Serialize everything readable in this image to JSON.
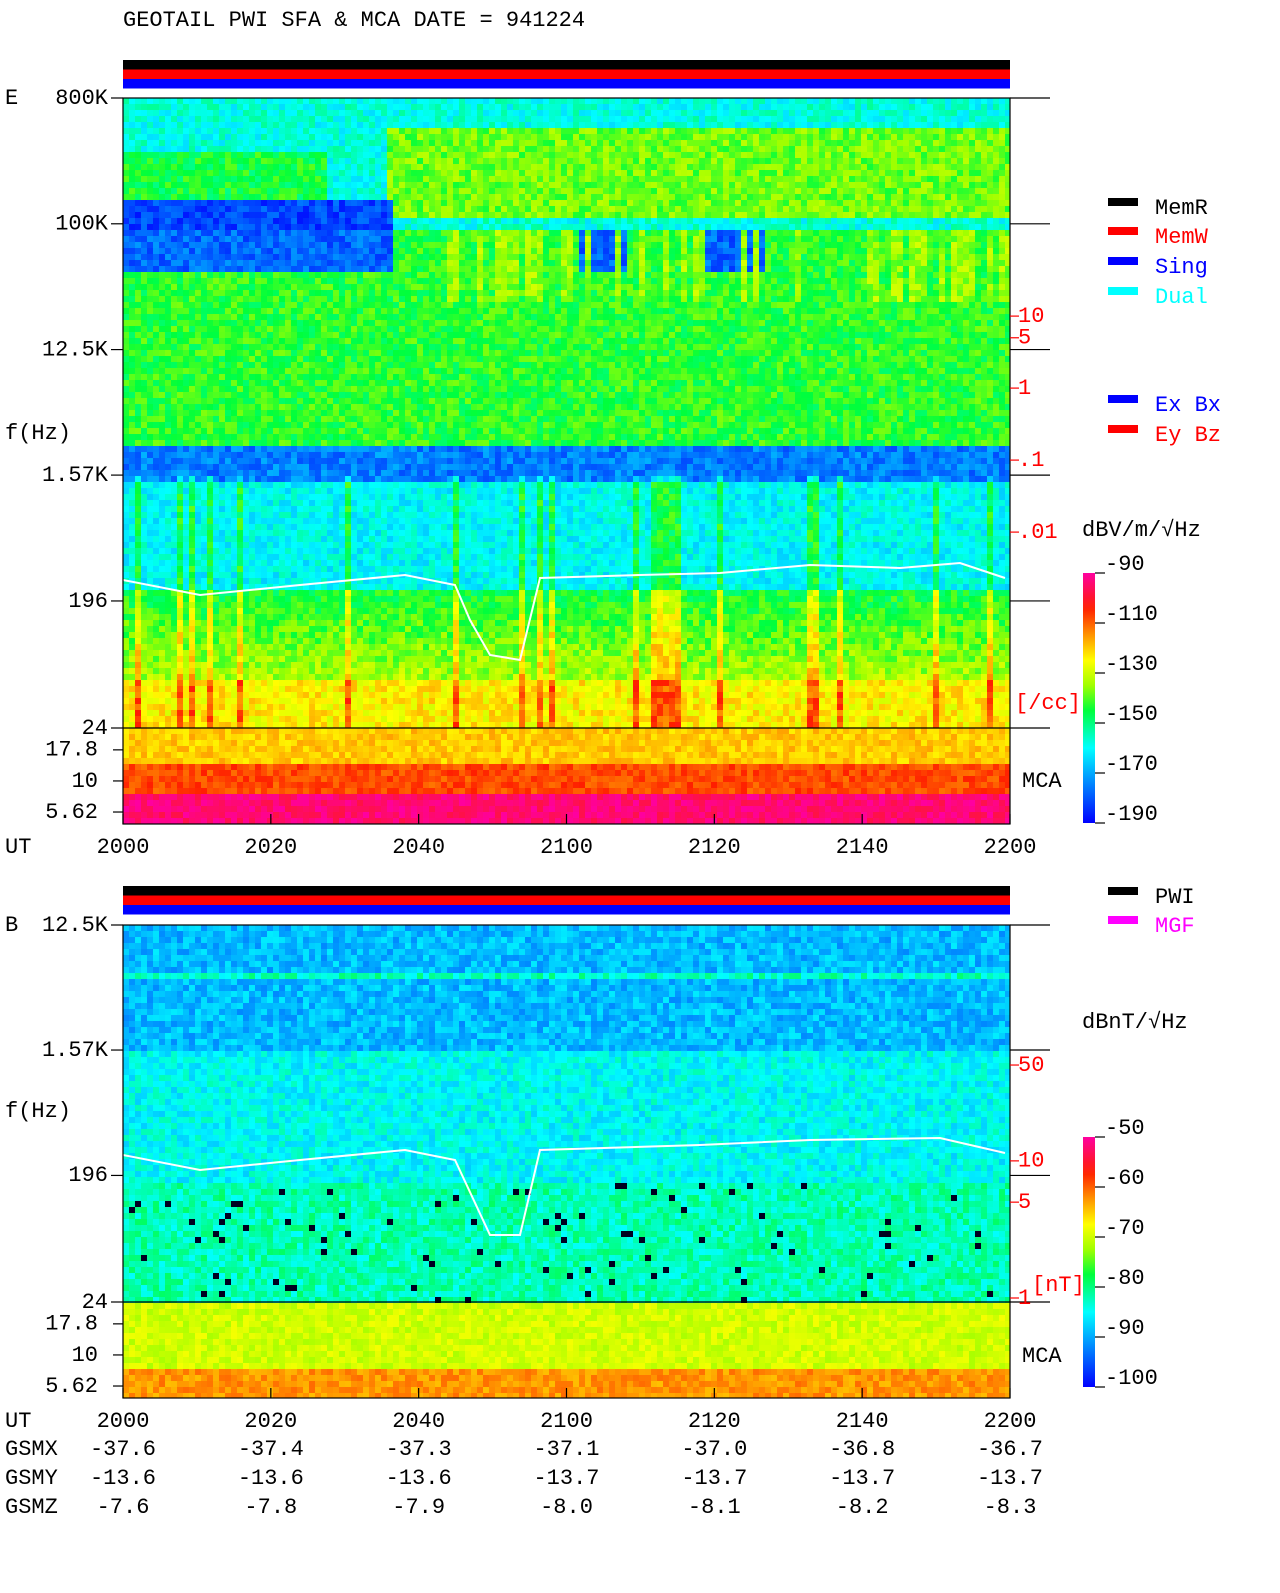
{
  "header": {
    "title": "GEOTAIL  PWI SFA & MCA   DATE = 941224"
  },
  "chart_data": [
    {
      "type": "spectrogram",
      "label": "E",
      "freq_axis_label": "f(Hz)",
      "ylim": [
        24,
        800000
      ],
      "log_y": true,
      "yticks": [
        {
          "value": 800000,
          "label": "800K"
        },
        {
          "value": 100000,
          "label": "100K"
        },
        {
          "value": 12500,
          "label": "12.5K"
        },
        {
          "value": 1570,
          "label": "1.57K"
        },
        196,
        24
      ],
      "mca_label": "MCA",
      "mca_ylim": [
        4.5,
        26.7
      ],
      "mca_ticks": [
        17.8,
        10,
        5.62
      ],
      "y2lim": [
        1.9e-05,
        10700
      ],
      "y2ticks": [
        10,
        5,
        1,
        {
          "value": 0.1,
          "label": ".1"
        },
        {
          "value": 0.01,
          "label": ".01"
        }
      ],
      "y2_unit": "[/cc]",
      "colorbar_label": "dBV/m/√Hz",
      "colorbar_lim": [
        -190,
        -90
      ],
      "colorbar_ticks": [
        -90,
        -110,
        -130,
        -150,
        -170,
        -190
      ],
      "x_label": "UT",
      "categories": [
        "2000",
        "2020",
        "2040",
        "2100",
        "2120",
        "2140",
        "2200"
      ],
      "legend": [
        {
          "name": "MemR",
          "color": "#000000"
        },
        {
          "name": "MemW",
          "color": "#ff0000"
        },
        {
          "name": "Sing",
          "color": "#0000ff"
        },
        {
          "name": "Dual",
          "color": "#00ffff"
        },
        {
          "name": "Ex Bx",
          "color": "#0000ff"
        },
        {
          "name": "Ey Bz",
          "color": "#ff0000"
        }
      ]
    },
    {
      "type": "spectrogram",
      "label": "B",
      "freq_axis_label": "f(Hz)",
      "ylim": [
        24,
        12500
      ],
      "log_y": true,
      "yticks": [
        {
          "value": 12500,
          "label": "12.5K"
        },
        {
          "value": 1570,
          "label": "1.57K"
        },
        196,
        24
      ],
      "mca_label": "MCA",
      "mca_ylim": [
        4.5,
        26.7
      ],
      "mca_ticks": [
        17.8,
        10,
        5.62
      ],
      "y2lim": [
        0.935,
        525
      ],
      "y2ticks": [
        50,
        10,
        5,
        1
      ],
      "y2_unit": "[nT]",
      "colorbar_label": "dBnT/√Hz",
      "colorbar_lim": [
        -100,
        -50
      ],
      "colorbar_ticks": [
        -50,
        -60,
        -70,
        -80,
        -90,
        -100
      ],
      "x_label": "UT",
      "categories": [
        "2000",
        "2020",
        "2040",
        "2100",
        "2120",
        "2140",
        "2200"
      ],
      "legend": [
        {
          "name": "PWI",
          "color": "#000000"
        },
        {
          "name": "MGF",
          "color": "#ff00ff"
        }
      ]
    }
  ],
  "orbit": {
    "rows": [
      {
        "name": "GSMX",
        "values": [
          "-37.6",
          "-37.4",
          "-37.3",
          "-37.1",
          "-37.0",
          "-36.8",
          "-36.7"
        ]
      },
      {
        "name": "GSMY",
        "values": [
          "-13.6",
          "-13.6",
          "-13.6",
          "-13.7",
          "-13.7",
          "-13.7",
          "-13.7"
        ]
      },
      {
        "name": "GSMZ",
        "values": [
          "-7.6",
          "-7.8",
          "-7.9",
          "-8.0",
          "-8.1",
          "-8.2",
          "-8.3"
        ]
      }
    ]
  }
}
